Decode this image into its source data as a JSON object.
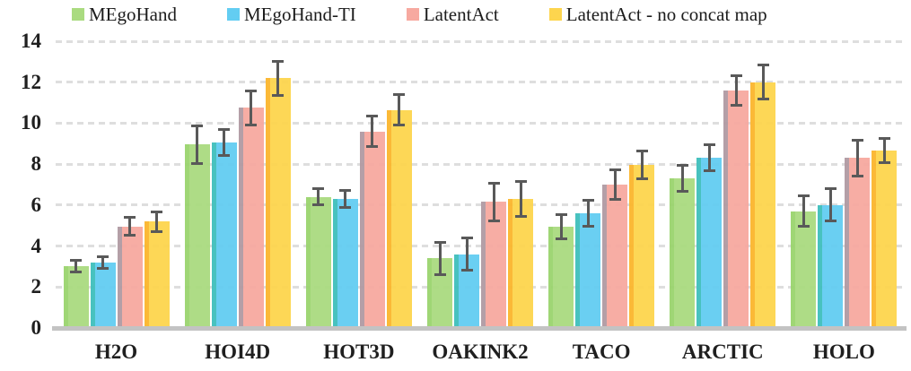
{
  "figure": {
    "background": "#ffffff",
    "text_color": "#1f1f1f",
    "grid_color": "#dedede",
    "baseline_color": "#c3c3c3",
    "error_bar_color": "#595959"
  },
  "chart_data": {
    "type": "bar",
    "title": "",
    "xlabel": "",
    "ylabel": "",
    "categories": [
      "H2O",
      "HOI4D",
      "HOT3D",
      "OAKINK2",
      "TACO",
      "ARCTIC",
      "HOLO"
    ],
    "series": [
      {
        "name": "MEgoHand",
        "color": "#aadb80",
        "edge_color": "#9ad46e",
        "values": [
          3.0,
          8.95,
          6.4,
          3.4,
          4.95,
          7.3,
          5.7
        ],
        "errors": [
          0.35,
          1.0,
          0.45,
          0.85,
          0.65,
          0.7,
          0.8
        ]
      },
      {
        "name": "MEgoHand-TI",
        "color": "#63cdf2",
        "edge_color": "#3fbfbc",
        "values": [
          3.2,
          9.05,
          6.3,
          3.6,
          5.6,
          8.3,
          6.0
        ],
        "errors": [
          0.35,
          0.7,
          0.5,
          0.85,
          0.7,
          0.7,
          0.85
        ]
      },
      {
        "name": "LatentAct",
        "color": "#f7a9a0",
        "edge_color": "#b19aa3",
        "values": [
          4.95,
          10.75,
          9.6,
          6.15,
          7.0,
          11.6,
          8.3
        ],
        "errors": [
          0.5,
          0.9,
          0.8,
          1.0,
          0.8,
          0.8,
          0.95
        ]
      },
      {
        "name": "LatentAct - no concat map",
        "color": "#fdd54e",
        "edge_color": "#fbb62d",
        "values": [
          5.2,
          12.2,
          10.65,
          6.3,
          7.95,
          12.0,
          8.65
        ],
        "errors": [
          0.55,
          0.9,
          0.8,
          0.9,
          0.75,
          0.9,
          0.65
        ]
      }
    ],
    "ylim": [
      0,
      14
    ],
    "yticks": [
      0,
      2,
      4,
      6,
      8,
      10,
      12,
      14
    ],
    "grid": "dashed horizontal gridlines at every ytick",
    "legend_position": "top",
    "error_bars": true
  }
}
